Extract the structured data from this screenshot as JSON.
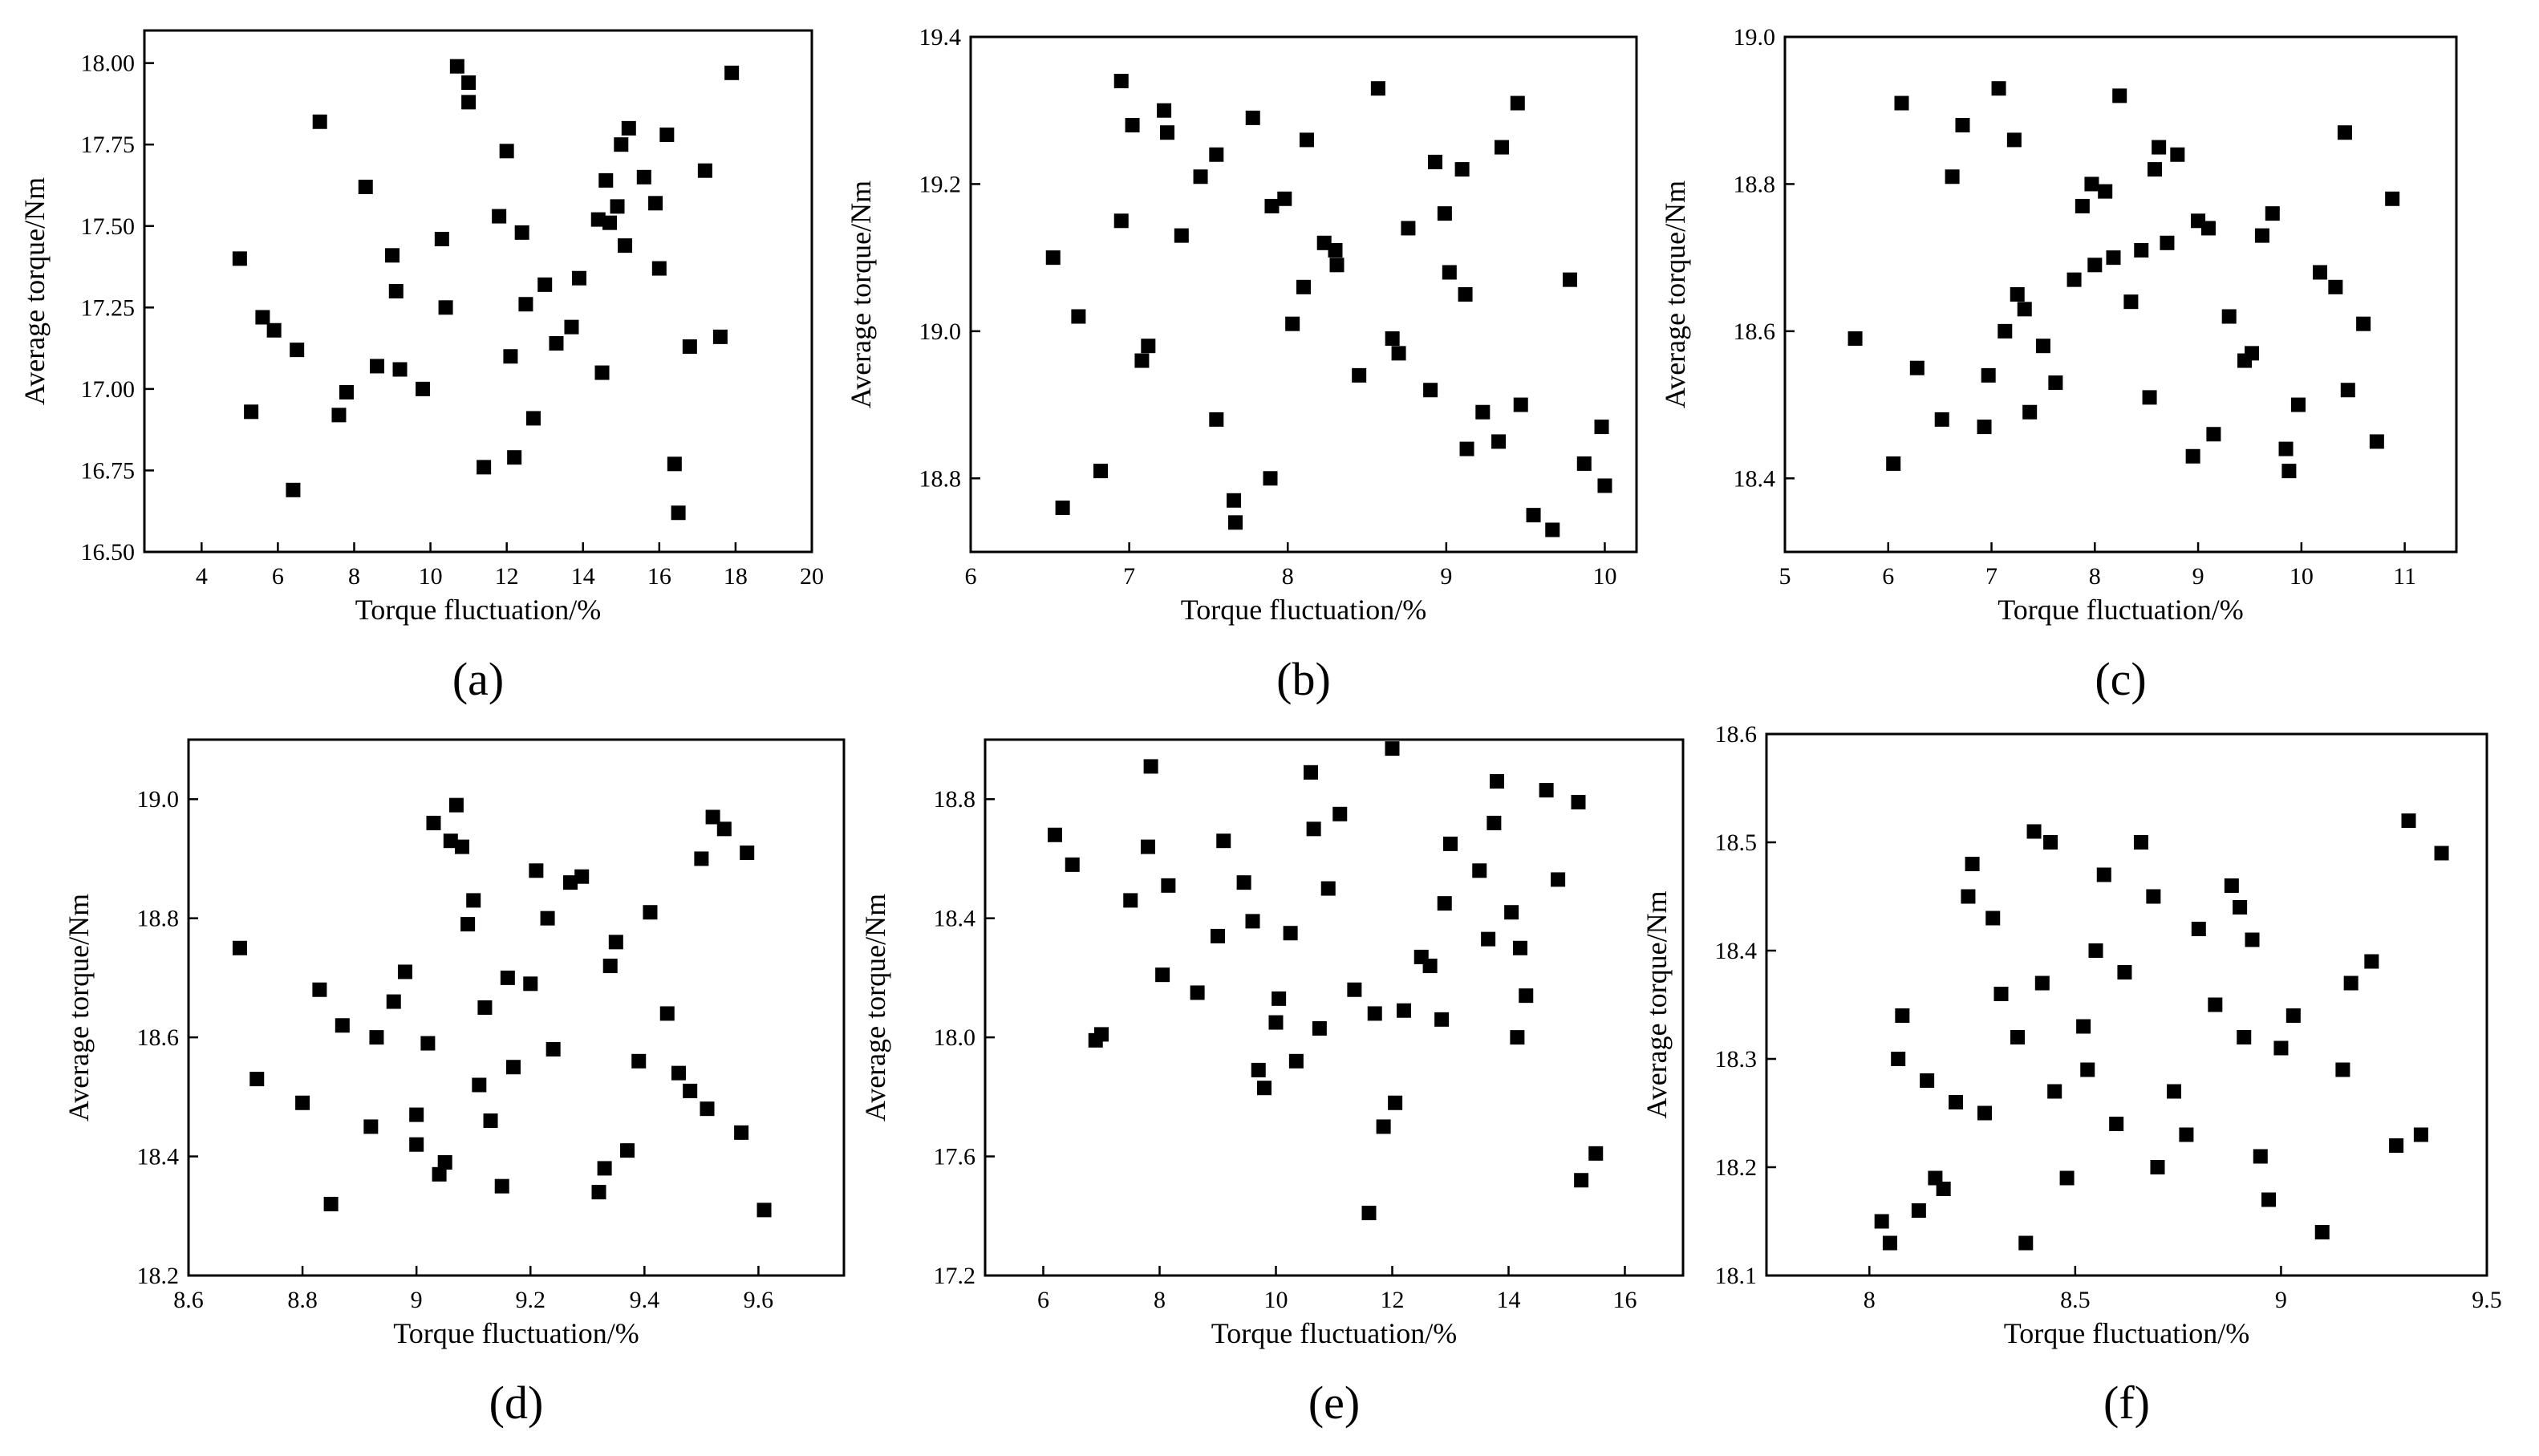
{
  "colors": {
    "marker": "#000000",
    "frame": "#000000",
    "background": "#ffffff"
  },
  "chart_data": [
    {
      "panel": "(a)",
      "type": "scatter",
      "xlabel": "Torque fluctuation/%",
      "ylabel": "Average torque/Nm",
      "xlim": [
        2.5,
        20
      ],
      "ylim": [
        16.5,
        18.1
      ],
      "xticks": [
        4,
        6,
        8,
        10,
        12,
        14,
        16,
        18,
        20
      ],
      "yticks": [
        16.5,
        16.75,
        17.0,
        17.25,
        17.5,
        17.75,
        18.0
      ],
      "ytick_labels": [
        "16.50",
        "16.75",
        "17.00",
        "17.25",
        "17.50",
        "17.75",
        "18.00"
      ],
      "points": [
        [
          5.0,
          17.4
        ],
        [
          5.3,
          16.93
        ],
        [
          5.6,
          17.22
        ],
        [
          5.9,
          17.18
        ],
        [
          6.4,
          16.69
        ],
        [
          6.5,
          17.12
        ],
        [
          7.1,
          17.82
        ],
        [
          7.6,
          16.92
        ],
        [
          7.8,
          16.99
        ],
        [
          8.3,
          17.62
        ],
        [
          8.6,
          17.07
        ],
        [
          9.0,
          17.41
        ],
        [
          9.1,
          17.3
        ],
        [
          9.2,
          17.06
        ],
        [
          9.8,
          17.0
        ],
        [
          10.3,
          17.46
        ],
        [
          10.4,
          17.25
        ],
        [
          10.7,
          17.99
        ],
        [
          11.0,
          17.94
        ],
        [
          11.0,
          17.88
        ],
        [
          11.4,
          16.76
        ],
        [
          11.8,
          17.53
        ],
        [
          12.0,
          17.73
        ],
        [
          12.1,
          17.1
        ],
        [
          12.2,
          16.79
        ],
        [
          12.4,
          17.48
        ],
        [
          12.5,
          17.26
        ],
        [
          12.7,
          16.91
        ],
        [
          13.0,
          17.32
        ],
        [
          13.3,
          17.14
        ],
        [
          13.7,
          17.19
        ],
        [
          13.9,
          17.34
        ],
        [
          14.4,
          17.52
        ],
        [
          14.5,
          17.05
        ],
        [
          14.6,
          17.64
        ],
        [
          14.7,
          17.51
        ],
        [
          14.9,
          17.56
        ],
        [
          15.0,
          17.75
        ],
        [
          15.1,
          17.44
        ],
        [
          15.2,
          17.8
        ],
        [
          15.6,
          17.65
        ],
        [
          15.9,
          17.57
        ],
        [
          16.0,
          17.37
        ],
        [
          16.2,
          17.78
        ],
        [
          16.4,
          16.77
        ],
        [
          16.5,
          16.62
        ],
        [
          16.8,
          17.13
        ],
        [
          17.2,
          17.67
        ],
        [
          17.6,
          17.16
        ],
        [
          17.9,
          17.97
        ]
      ]
    },
    {
      "panel": "(b)",
      "type": "scatter",
      "xlabel": "Torque fluctuation/%",
      "ylabel": "Average torque/Nm",
      "xlim": [
        6,
        10.2
      ],
      "ylim": [
        18.7,
        19.4
      ],
      "xticks": [
        6,
        7,
        8,
        9,
        10
      ],
      "yticks": [
        18.8,
        19.0,
        19.2,
        19.4
      ],
      "ytick_labels": [
        "18.8",
        "19.0",
        "19.2",
        "19.4"
      ],
      "points": [
        [
          6.52,
          19.1
        ],
        [
          6.58,
          18.76
        ],
        [
          6.68,
          19.02
        ],
        [
          6.82,
          18.81
        ],
        [
          6.95,
          19.34
        ],
        [
          6.95,
          19.15
        ],
        [
          7.02,
          19.28
        ],
        [
          7.08,
          18.96
        ],
        [
          7.12,
          18.98
        ],
        [
          7.22,
          19.3
        ],
        [
          7.24,
          19.27
        ],
        [
          7.33,
          19.13
        ],
        [
          7.45,
          19.21
        ],
        [
          7.55,
          19.24
        ],
        [
          7.55,
          18.88
        ],
        [
          7.66,
          18.77
        ],
        [
          7.67,
          18.74
        ],
        [
          7.78,
          19.29
        ],
        [
          7.89,
          18.8
        ],
        [
          7.9,
          19.17
        ],
        [
          7.98,
          19.18
        ],
        [
          8.03,
          19.01
        ],
        [
          8.1,
          19.06
        ],
        [
          8.12,
          19.26
        ],
        [
          8.23,
          19.12
        ],
        [
          8.3,
          19.11
        ],
        [
          8.31,
          19.09
        ],
        [
          8.45,
          18.94
        ],
        [
          8.57,
          19.33
        ],
        [
          8.66,
          18.99
        ],
        [
          8.7,
          18.97
        ],
        [
          8.76,
          19.14
        ],
        [
          8.9,
          18.92
        ],
        [
          8.93,
          19.23
        ],
        [
          8.99,
          19.16
        ],
        [
          9.02,
          19.08
        ],
        [
          9.1,
          19.22
        ],
        [
          9.12,
          19.05
        ],
        [
          9.13,
          18.84
        ],
        [
          9.23,
          18.89
        ],
        [
          9.33,
          18.85
        ],
        [
          9.35,
          19.25
        ],
        [
          9.45,
          19.31
        ],
        [
          9.47,
          18.9
        ],
        [
          9.55,
          18.75
        ],
        [
          9.67,
          18.73
        ],
        [
          9.78,
          19.07
        ],
        [
          9.87,
          18.82
        ],
        [
          9.98,
          18.87
        ],
        [
          10.0,
          18.79
        ]
      ]
    },
    {
      "panel": "(c)",
      "type": "scatter",
      "xlabel": "Torque fluctuation/%",
      "ylabel": "Average torque/Nm",
      "xlim": [
        5,
        11.5
      ],
      "ylim": [
        18.3,
        19.0
      ],
      "xticks": [
        5,
        6,
        7,
        8,
        9,
        10,
        11
      ],
      "yticks": [
        18.4,
        18.6,
        18.8,
        19.0
      ],
      "ytick_labels": [
        "18.4",
        "18.6",
        "18.8",
        "19.0"
      ],
      "points": [
        [
          5.68,
          18.59
        ],
        [
          6.05,
          18.42
        ],
        [
          6.13,
          18.91
        ],
        [
          6.28,
          18.55
        ],
        [
          6.52,
          18.48
        ],
        [
          6.62,
          18.81
        ],
        [
          6.72,
          18.88
        ],
        [
          6.93,
          18.47
        ],
        [
          6.97,
          18.54
        ],
        [
          7.07,
          18.93
        ],
        [
          7.13,
          18.6
        ],
        [
          7.22,
          18.86
        ],
        [
          7.25,
          18.65
        ],
        [
          7.32,
          18.63
        ],
        [
          7.37,
          18.49
        ],
        [
          7.5,
          18.58
        ],
        [
          7.62,
          18.53
        ],
        [
          7.8,
          18.67
        ],
        [
          7.88,
          18.77
        ],
        [
          7.97,
          18.8
        ],
        [
          8.0,
          18.69
        ],
        [
          8.1,
          18.79
        ],
        [
          8.18,
          18.7
        ],
        [
          8.24,
          18.92
        ],
        [
          8.35,
          18.64
        ],
        [
          8.45,
          18.71
        ],
        [
          8.53,
          18.51
        ],
        [
          8.58,
          18.82
        ],
        [
          8.62,
          18.85
        ],
        [
          8.7,
          18.72
        ],
        [
          8.8,
          18.84
        ],
        [
          8.95,
          18.43
        ],
        [
          9.0,
          18.75
        ],
        [
          9.1,
          18.74
        ],
        [
          9.15,
          18.46
        ],
        [
          9.3,
          18.62
        ],
        [
          9.45,
          18.56
        ],
        [
          9.52,
          18.57
        ],
        [
          9.62,
          18.73
        ],
        [
          9.72,
          18.76
        ],
        [
          9.85,
          18.44
        ],
        [
          9.88,
          18.41
        ],
        [
          9.97,
          18.5
        ],
        [
          10.18,
          18.68
        ],
        [
          10.33,
          18.66
        ],
        [
          10.42,
          18.87
        ],
        [
          10.45,
          18.52
        ],
        [
          10.6,
          18.61
        ],
        [
          10.73,
          18.45
        ],
        [
          10.88,
          18.78
        ]
      ]
    },
    {
      "panel": "(d)",
      "type": "scatter",
      "xlabel": "Torque fluctuation/%",
      "ylabel": "Average torque/Nm",
      "xlim": [
        8.6,
        9.75
      ],
      "ylim": [
        18.2,
        19.1
      ],
      "xticks": [
        8.6,
        8.8,
        9.0,
        9.2,
        9.4,
        9.6
      ],
      "yticks": [
        18.2,
        18.4,
        18.6,
        18.8,
        19.0
      ],
      "ytick_labels": [
        "18.2",
        "18.4",
        "18.6",
        "18.8",
        "19.0"
      ],
      "points": [
        [
          8.69,
          18.75
        ],
        [
          8.72,
          18.53
        ],
        [
          8.8,
          18.49
        ],
        [
          8.83,
          18.68
        ],
        [
          8.85,
          18.32
        ],
        [
          8.87,
          18.62
        ],
        [
          8.92,
          18.45
        ],
        [
          8.93,
          18.6
        ],
        [
          8.96,
          18.66
        ],
        [
          8.98,
          18.71
        ],
        [
          9.0,
          18.47
        ],
        [
          9.0,
          18.42
        ],
        [
          9.02,
          18.59
        ],
        [
          9.03,
          18.96
        ],
        [
          9.04,
          18.37
        ],
        [
          9.05,
          18.39
        ],
        [
          9.06,
          18.93
        ],
        [
          9.07,
          18.99
        ],
        [
          9.08,
          18.92
        ],
        [
          9.09,
          18.79
        ],
        [
          9.1,
          18.83
        ],
        [
          9.11,
          18.52
        ],
        [
          9.12,
          18.65
        ],
        [
          9.13,
          18.46
        ],
        [
          9.15,
          18.35
        ],
        [
          9.16,
          18.7
        ],
        [
          9.17,
          18.55
        ],
        [
          9.2,
          18.69
        ],
        [
          9.21,
          18.88
        ],
        [
          9.23,
          18.8
        ],
        [
          9.24,
          18.58
        ],
        [
          9.27,
          18.86
        ],
        [
          9.29,
          18.87
        ],
        [
          9.32,
          18.34
        ],
        [
          9.33,
          18.38
        ],
        [
          9.34,
          18.72
        ],
        [
          9.35,
          18.76
        ],
        [
          9.37,
          18.41
        ],
        [
          9.39,
          18.56
        ],
        [
          9.41,
          18.81
        ],
        [
          9.44,
          18.64
        ],
        [
          9.46,
          18.54
        ],
        [
          9.48,
          18.51
        ],
        [
          9.5,
          18.9
        ],
        [
          9.51,
          18.48
        ],
        [
          9.52,
          18.97
        ],
        [
          9.54,
          18.95
        ],
        [
          9.57,
          18.44
        ],
        [
          9.58,
          18.91
        ],
        [
          9.61,
          18.31
        ]
      ]
    },
    {
      "panel": "(e)",
      "type": "scatter",
      "xlabel": "Torque fluctuation/%",
      "ylabel": "Average torque/Nm",
      "xlim": [
        5,
        17
      ],
      "ylim": [
        17.2,
        19.0
      ],
      "xticks": [
        6,
        8,
        10,
        12,
        14,
        16
      ],
      "yticks": [
        17.2,
        17.6,
        18.0,
        18.4,
        18.8
      ],
      "ytick_labels": [
        "17.2",
        "17.6",
        "18.0",
        "18.4",
        "18.8"
      ],
      "points": [
        [
          6.2,
          18.68
        ],
        [
          6.5,
          18.58
        ],
        [
          6.9,
          17.99
        ],
        [
          7.0,
          18.01
        ],
        [
          7.5,
          18.46
        ],
        [
          7.8,
          18.64
        ],
        [
          7.85,
          18.91
        ],
        [
          8.05,
          18.21
        ],
        [
          8.15,
          18.51
        ],
        [
          8.65,
          18.15
        ],
        [
          9.0,
          18.34
        ],
        [
          9.1,
          18.66
        ],
        [
          9.45,
          18.52
        ],
        [
          9.6,
          18.39
        ],
        [
          9.7,
          17.89
        ],
        [
          9.8,
          17.83
        ],
        [
          10.0,
          18.05
        ],
        [
          10.05,
          18.13
        ],
        [
          10.25,
          18.35
        ],
        [
          10.35,
          17.92
        ],
        [
          10.6,
          18.89
        ],
        [
          10.65,
          18.7
        ],
        [
          10.75,
          18.03
        ],
        [
          10.9,
          18.5
        ],
        [
          11.1,
          18.75
        ],
        [
          11.35,
          18.16
        ],
        [
          11.6,
          17.41
        ],
        [
          11.7,
          18.08
        ],
        [
          11.85,
          17.7
        ],
        [
          12.0,
          18.97
        ],
        [
          12.05,
          17.78
        ],
        [
          12.2,
          18.09
        ],
        [
          12.5,
          18.27
        ],
        [
          12.65,
          18.24
        ],
        [
          12.85,
          18.06
        ],
        [
          12.9,
          18.45
        ],
        [
          13.0,
          18.65
        ],
        [
          13.5,
          18.56
        ],
        [
          13.65,
          18.33
        ],
        [
          13.75,
          18.72
        ],
        [
          13.8,
          18.86
        ],
        [
          14.05,
          18.42
        ],
        [
          14.15,
          18.0
        ],
        [
          14.2,
          18.3
        ],
        [
          14.3,
          18.14
        ],
        [
          14.65,
          18.83
        ],
        [
          14.85,
          18.53
        ],
        [
          15.2,
          18.79
        ],
        [
          15.25,
          17.52
        ],
        [
          15.5,
          17.61
        ]
      ]
    },
    {
      "panel": "(f)",
      "type": "scatter",
      "xlabel": "Torque fluctuation/%",
      "ylabel": "Average torque/Nm",
      "xlim": [
        7.75,
        9.5
      ],
      "ylim": [
        18.1,
        18.6
      ],
      "xticks": [
        8.0,
        8.5,
        9.0,
        9.5
      ],
      "yticks": [
        18.1,
        18.2,
        18.3,
        18.4,
        18.5,
        18.6
      ],
      "ytick_labels": [
        "18.1",
        "18.2",
        "18.3",
        "18.4",
        "18.5",
        "18.6"
      ],
      "points": [
        [
          8.03,
          18.15
        ],
        [
          8.05,
          18.13
        ],
        [
          8.07,
          18.3
        ],
        [
          8.08,
          18.34
        ],
        [
          8.12,
          18.16
        ],
        [
          8.14,
          18.28
        ],
        [
          8.16,
          18.19
        ],
        [
          8.18,
          18.18
        ],
        [
          8.21,
          18.26
        ],
        [
          8.24,
          18.45
        ],
        [
          8.25,
          18.48
        ],
        [
          8.28,
          18.25
        ],
        [
          8.3,
          18.43
        ],
        [
          8.32,
          18.36
        ],
        [
          8.36,
          18.32
        ],
        [
          8.38,
          18.13
        ],
        [
          8.4,
          18.51
        ],
        [
          8.42,
          18.37
        ],
        [
          8.44,
          18.5
        ],
        [
          8.45,
          18.27
        ],
        [
          8.48,
          18.19
        ],
        [
          8.52,
          18.33
        ],
        [
          8.53,
          18.29
        ],
        [
          8.55,
          18.4
        ],
        [
          8.57,
          18.47
        ],
        [
          8.6,
          18.24
        ],
        [
          8.62,
          18.38
        ],
        [
          8.66,
          18.5
        ],
        [
          8.69,
          18.45
        ],
        [
          8.7,
          18.2
        ],
        [
          8.74,
          18.27
        ],
        [
          8.77,
          18.23
        ],
        [
          8.8,
          18.42
        ],
        [
          8.84,
          18.35
        ],
        [
          8.88,
          18.46
        ],
        [
          8.9,
          18.44
        ],
        [
          8.91,
          18.32
        ],
        [
          8.93,
          18.41
        ],
        [
          8.95,
          18.21
        ],
        [
          8.97,
          18.17
        ],
        [
          9.0,
          18.31
        ],
        [
          9.03,
          18.34
        ],
        [
          9.1,
          18.14
        ],
        [
          9.15,
          18.29
        ],
        [
          9.17,
          18.37
        ],
        [
          9.22,
          18.39
        ],
        [
          9.28,
          18.22
        ],
        [
          9.31,
          18.52
        ],
        [
          9.34,
          18.23
        ],
        [
          9.39,
          18.49
        ]
      ]
    }
  ]
}
